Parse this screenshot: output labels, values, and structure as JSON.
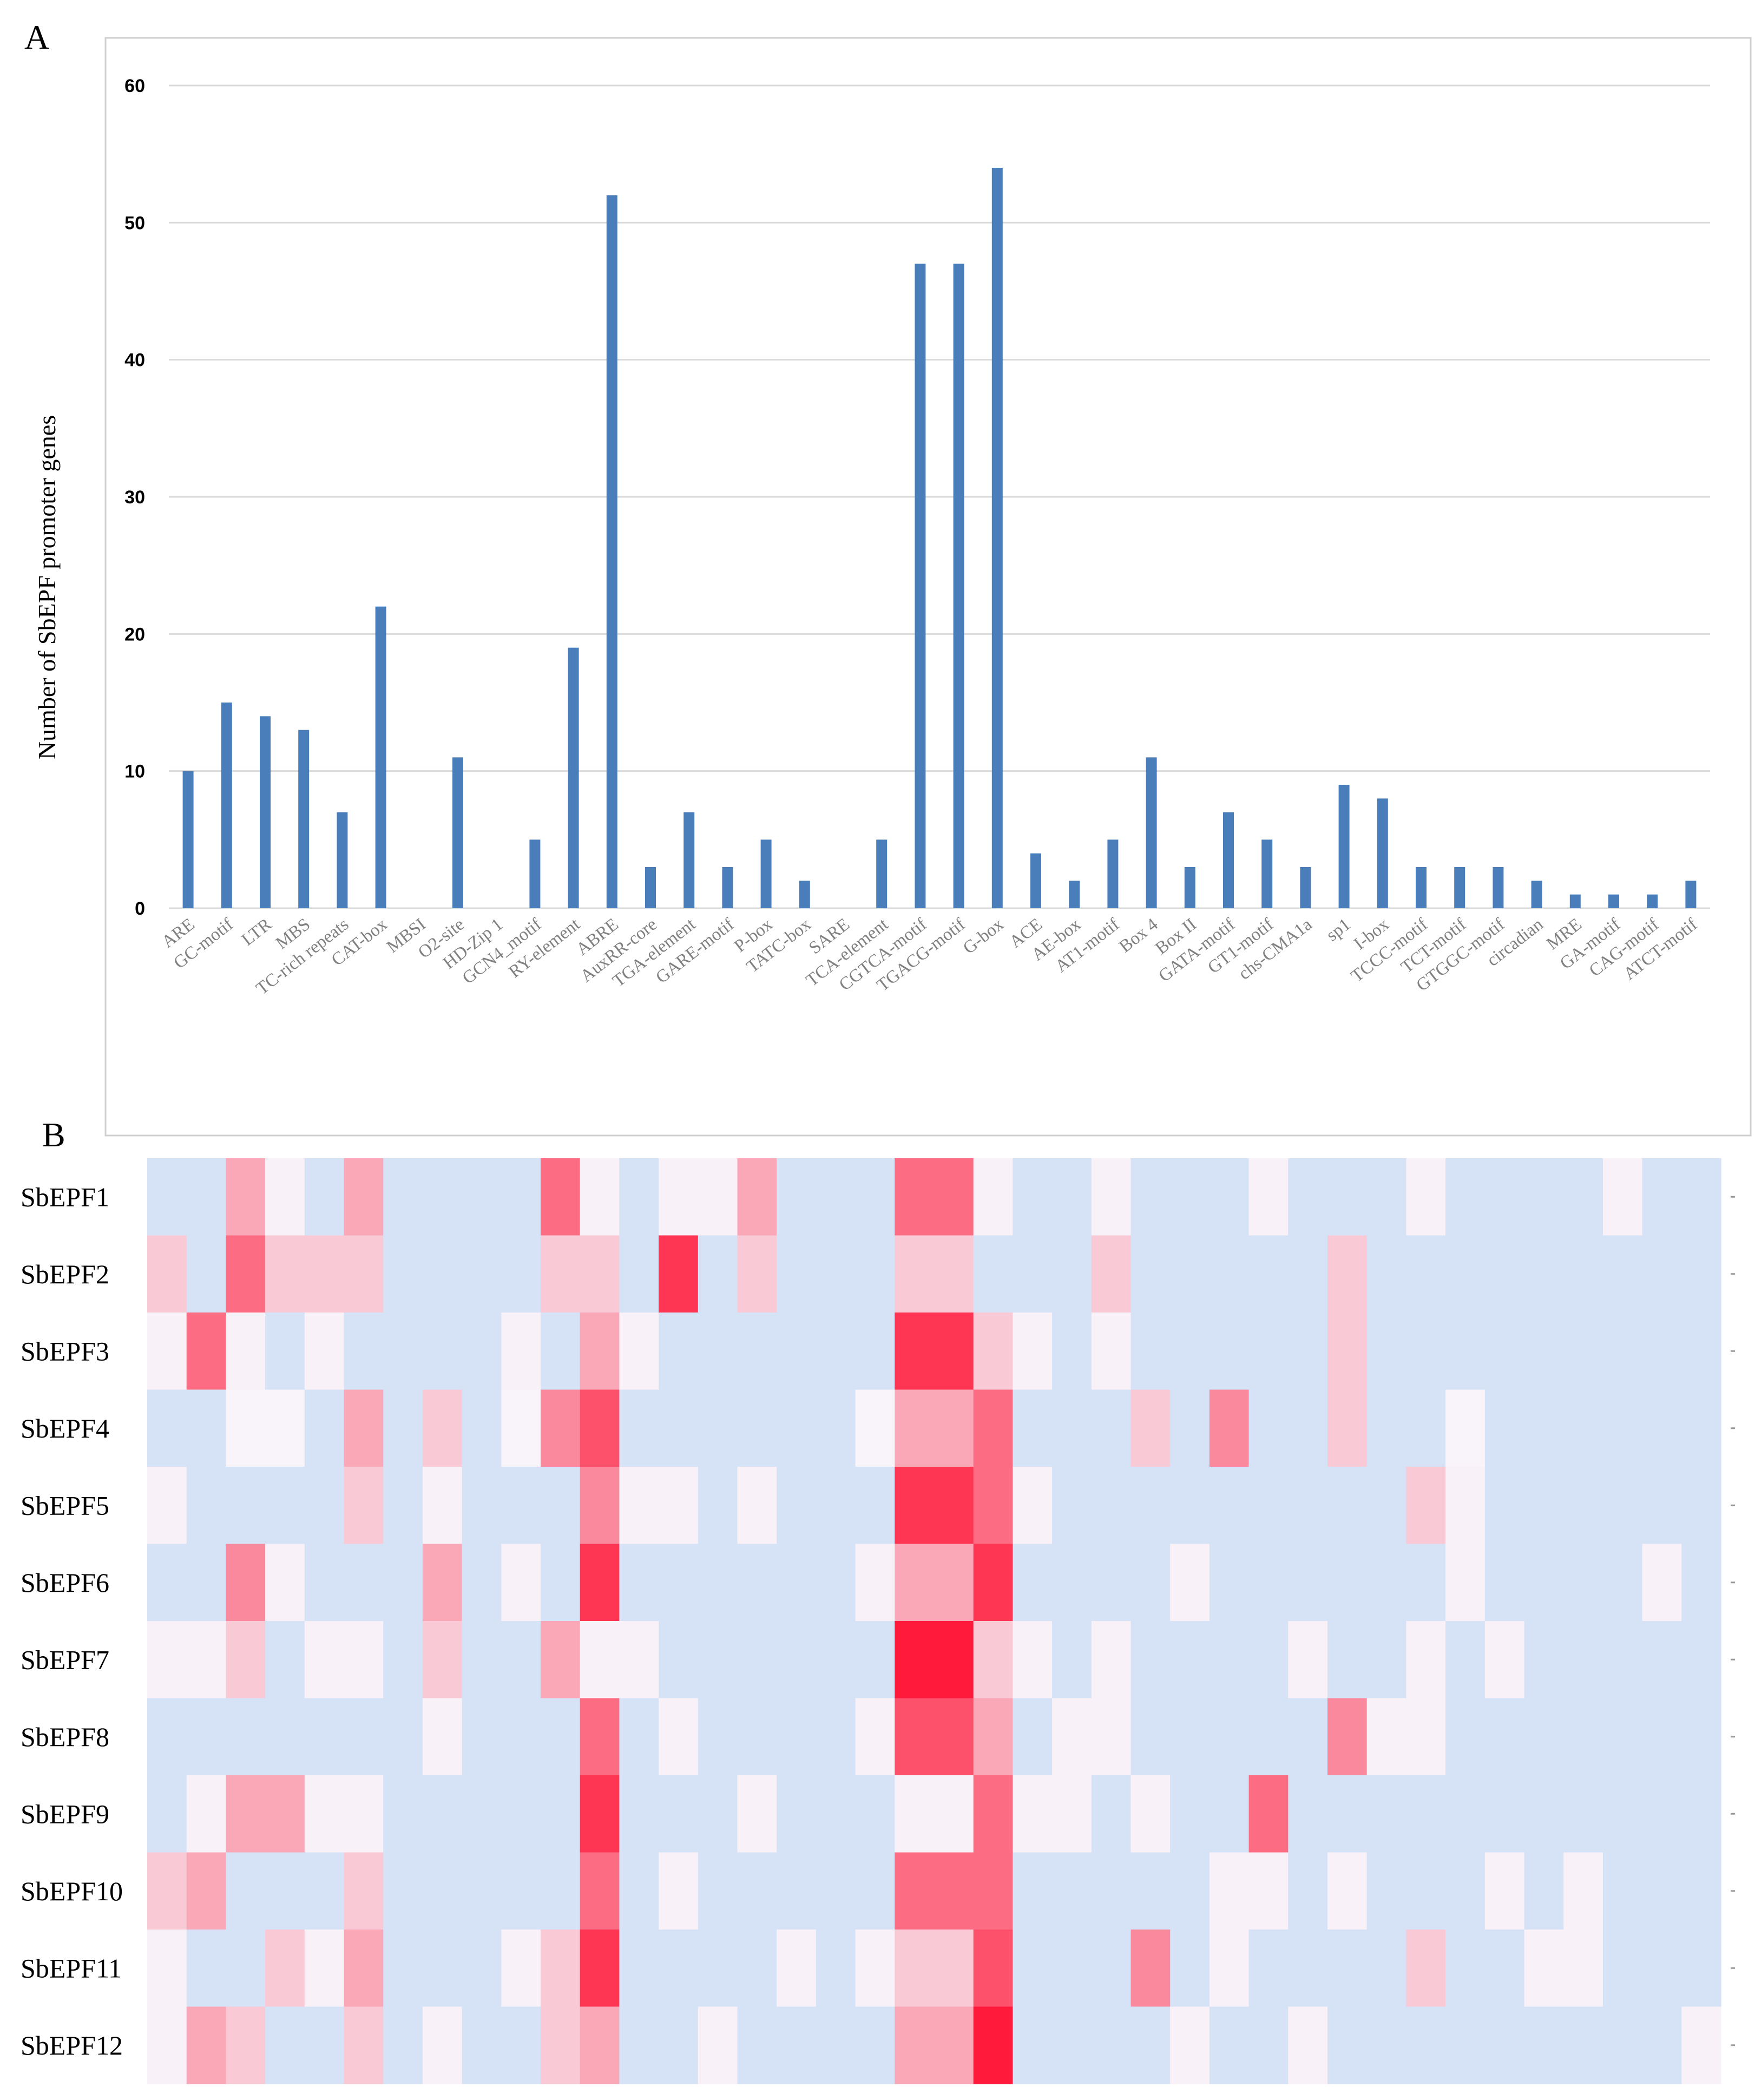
{
  "figure": {
    "panel_a_letter": "A",
    "panel_b_letter": "B",
    "colors": {
      "bar": "#4a7ebb",
      "grid": "#d9d9d9",
      "frame": "#cfcfcf",
      "heat_low": "#d6e2f6",
      "heat_high": "#ff1a3c"
    }
  },
  "chart_data": [
    {
      "type": "bar",
      "ylabel": "Number of SbEPF promoter genes",
      "ylim": [
        0,
        60
      ],
      "yticks": [
        0,
        10,
        20,
        30,
        40,
        50,
        60
      ],
      "grid": true,
      "categories": [
        "ARE",
        "GC-motif",
        "LTR",
        "MBS",
        "TC-rich repeats",
        "CAT-box",
        "MBSI",
        "O2-site",
        "HD-Zip 1",
        "GCN4_motif",
        "RY-element",
        "ABRE",
        "AuxRR-core",
        "TGA-element",
        "GARE-motif",
        "P-box",
        "TATC-box",
        "SARE",
        "TCA-element",
        "CGTCA-motif",
        "TGACG-motif",
        "G-box",
        "ACE",
        "AE-box",
        "AT1-motif",
        "Box 4",
        "Box II",
        "GATA-motif",
        "GT1-motif",
        "chs-CMA1a",
        "sp1",
        "I-box",
        "TCCC-motif",
        "TCT-motif",
        "GTGGC-motif",
        "circadian",
        "MRE",
        "GA-motif",
        "CAG-motif",
        "ATCT-motif"
      ],
      "values": [
        10,
        15,
        14,
        13,
        7,
        22,
        0,
        11,
        0,
        5,
        19,
        52,
        3,
        7,
        3,
        5,
        2,
        0,
        5,
        47,
        47,
        54,
        4,
        2,
        5,
        11,
        3,
        7,
        5,
        3,
        9,
        8,
        3,
        3,
        3,
        2,
        1,
        1,
        1,
        2
      ]
    },
    {
      "type": "heatmap",
      "rows": [
        "SbEPF1",
        "SbEPF2",
        "SbEPF3",
        "SbEPF4",
        "SbEPF5",
        "SbEPF6",
        "SbEPF7",
        "SbEPF8",
        "SbEPF9",
        "SbEPF10",
        "SbEPF11",
        "SbEPF12"
      ],
      "values": [
        [
          0,
          0,
          3,
          1,
          0,
          3,
          0,
          0,
          0,
          0,
          5,
          1,
          0,
          1,
          1,
          3,
          0,
          0,
          0,
          5,
          5,
          1,
          0,
          0,
          1,
          0,
          0,
          0,
          1,
          0,
          0,
          0,
          1,
          0,
          0,
          0,
          0,
          1,
          0,
          0
        ],
        [
          2,
          0,
          5,
          2,
          2,
          2,
          0,
          0,
          0,
          0,
          2,
          2,
          0,
          7,
          0,
          2,
          0,
          0,
          0,
          2,
          2,
          0,
          0,
          0,
          2,
          0,
          0,
          0,
          0,
          0,
          2,
          0,
          0,
          0,
          0,
          0,
          0,
          0,
          0,
          0
        ],
        [
          1,
          5,
          1,
          0,
          1,
          0,
          0,
          0,
          0,
          1,
          0,
          3,
          1,
          0,
          0,
          0,
          0,
          0,
          0,
          7,
          7,
          2,
          1,
          0,
          1,
          0,
          0,
          0,
          0,
          0,
          2,
          0,
          0,
          0,
          0,
          0,
          0,
          0,
          0,
          0
        ],
        [
          0,
          0,
          0.5,
          0.5,
          0,
          3,
          0,
          2,
          0,
          0.5,
          4,
          6,
          0,
          0,
          0,
          0,
          0,
          0,
          0.5,
          3,
          3,
          5,
          0,
          0,
          0,
          2,
          0,
          4,
          0,
          0,
          2,
          0,
          0,
          0.5,
          0,
          0,
          0,
          0,
          0,
          0
        ],
        [
          1,
          0,
          0,
          0,
          0,
          2,
          0,
          1,
          0,
          0,
          0,
          4,
          1,
          1,
          0,
          1,
          0,
          0,
          0,
          7,
          7,
          5,
          1,
          0,
          0,
          0,
          0,
          0,
          0,
          0,
          0,
          0,
          2,
          1,
          0,
          0,
          0,
          0,
          0,
          0
        ],
        [
          0,
          0,
          4,
          1,
          0,
          0,
          0,
          3,
          0,
          1,
          0,
          7,
          0,
          0,
          0,
          0,
          0,
          0,
          1,
          3,
          3,
          7,
          0,
          0,
          0,
          0,
          1,
          0,
          0,
          0,
          0,
          0,
          0,
          1,
          0,
          0,
          0,
          0,
          1,
          0
        ],
        [
          1,
          1,
          2,
          0,
          1,
          1,
          0,
          2,
          0,
          0,
          3,
          1,
          1,
          0,
          0,
          0,
          0,
          0,
          0,
          8,
          8,
          2,
          1,
          0,
          1,
          0,
          0,
          0,
          0,
          1,
          0,
          0,
          1,
          0,
          1,
          0,
          0,
          0,
          0,
          0
        ],
        [
          0,
          0,
          0,
          0,
          0,
          0,
          0,
          1,
          0,
          0,
          0,
          5,
          0,
          1,
          0,
          0,
          0,
          0,
          1,
          6,
          6,
          3,
          0,
          1,
          1,
          0,
          0,
          0,
          0,
          0,
          4,
          1,
          1,
          0,
          0,
          0,
          0,
          0,
          0,
          0
        ],
        [
          0,
          1,
          3,
          3,
          1,
          1,
          0,
          0,
          0,
          0,
          0,
          7,
          0,
          0,
          0,
          1,
          0,
          0,
          0,
          1,
          1,
          5,
          1,
          1,
          0,
          1,
          0,
          0,
          5,
          0,
          0,
          0,
          0,
          0,
          0,
          0,
          0,
          0,
          0,
          0
        ],
        [
          2,
          3,
          0,
          0,
          0,
          2,
          0,
          0,
          0,
          0,
          0,
          5,
          0,
          1,
          0,
          0,
          0,
          0,
          0,
          5,
          5,
          5,
          0,
          0,
          0,
          0,
          0,
          1,
          1,
          0,
          1,
          0,
          0,
          0,
          1,
          0,
          1,
          0,
          0,
          0
        ],
        [
          1,
          0,
          0,
          2,
          1,
          3,
          0,
          0,
          0,
          1,
          2,
          7,
          0,
          0,
          0,
          0,
          1,
          0,
          1,
          2,
          2,
          6,
          0,
          0,
          0,
          4,
          0,
          1,
          0,
          0,
          0,
          0,
          2,
          0,
          0,
          1,
          1,
          0,
          0,
          0
        ],
        [
          1,
          3,
          2,
          0,
          0,
          2,
          0,
          1,
          0,
          0,
          2,
          3,
          0,
          0,
          1,
          0,
          0,
          0,
          0,
          3,
          3,
          8,
          0,
          0,
          0,
          0,
          1,
          0,
          0,
          1,
          0,
          0,
          0,
          0,
          0,
          0,
          0,
          0,
          0,
          1
        ]
      ]
    }
  ]
}
